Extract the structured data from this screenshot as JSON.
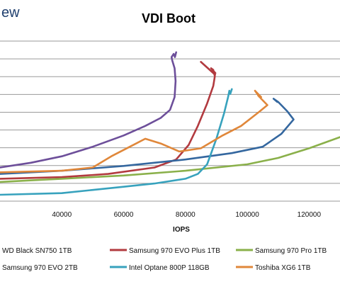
{
  "brand": {
    "logo_text": "ew"
  },
  "chart_data": {
    "type": "line",
    "title": "VDI Boot",
    "xlabel": "IOPS",
    "ylabel": "",
    "xlim": [
      20000,
      130000
    ],
    "ylim": [
      0,
      10
    ],
    "x_ticks": [
      40000,
      60000,
      80000,
      100000,
      120000
    ],
    "y_gridlines": 9,
    "grid": true,
    "legend_position": "bottom",
    "series": [
      {
        "name": "WD Black SN750 1TB",
        "color": "#6d4f9a",
        "points": [
          [
            20000,
            2.1
          ],
          [
            30000,
            2.4
          ],
          [
            40000,
            2.8
          ],
          [
            50000,
            3.4
          ],
          [
            60000,
            4.1
          ],
          [
            67000,
            4.7
          ],
          [
            72000,
            5.2
          ],
          [
            75000,
            5.7
          ],
          [
            76500,
            6.5
          ],
          [
            76800,
            7.5
          ],
          [
            76500,
            8.3
          ],
          [
            75700,
            8.8
          ],
          [
            75500,
            9.0
          ],
          [
            76200,
            9.2
          ],
          [
            76600,
            9.0
          ],
          [
            77000,
            9.3
          ]
        ]
      },
      {
        "name": "Samsung 970 EVO Plus 1TB",
        "color": "#b23a3f",
        "points": [
          [
            20000,
            1.4
          ],
          [
            40000,
            1.5
          ],
          [
            55000,
            1.7
          ],
          [
            70000,
            2.1
          ],
          [
            77000,
            2.6
          ],
          [
            81000,
            3.5
          ],
          [
            84000,
            4.7
          ],
          [
            87000,
            6.1
          ],
          [
            89000,
            7.2
          ],
          [
            89500,
            7.8
          ],
          [
            89000,
            8.2
          ],
          [
            88300,
            8.3
          ],
          [
            89700,
            8.0
          ],
          [
            89400,
            8.0
          ],
          [
            89600,
            7.9
          ],
          [
            85000,
            8.7
          ]
        ]
      },
      {
        "name": "Samsung 970 Pro 1TB",
        "color": "#8ab04a",
        "points": [
          [
            20000,
            1.2
          ],
          [
            40000,
            1.4
          ],
          [
            60000,
            1.6
          ],
          [
            80000,
            1.9
          ],
          [
            100000,
            2.3
          ],
          [
            110000,
            2.7
          ],
          [
            120000,
            3.3
          ],
          [
            130000,
            4.0
          ]
        ]
      },
      {
        "name": "Samsung 970 EVO 2TB",
        "color": "#34679f",
        "points": [
          [
            20000,
            1.7
          ],
          [
            40000,
            1.9
          ],
          [
            60000,
            2.2
          ],
          [
            80000,
            2.6
          ],
          [
            95000,
            3.0
          ],
          [
            105000,
            3.4
          ],
          [
            111000,
            4.2
          ],
          [
            115000,
            5.1
          ],
          [
            113000,
            5.6
          ],
          [
            111000,
            6.0
          ],
          [
            110000,
            6.2
          ],
          [
            108500,
            6.4
          ],
          [
            109700,
            6.2
          ],
          [
            110000,
            6.2
          ]
        ]
      },
      {
        "name": "Intel Optane 800P 118GB",
        "color": "#37a2bd",
        "points": [
          [
            20000,
            0.4
          ],
          [
            40000,
            0.5
          ],
          [
            50000,
            0.7
          ],
          [
            60000,
            0.9
          ],
          [
            70000,
            1.1
          ],
          [
            80000,
            1.4
          ],
          [
            84000,
            1.7
          ],
          [
            87000,
            2.3
          ],
          [
            90000,
            3.9
          ],
          [
            92500,
            5.5
          ],
          [
            93800,
            6.5
          ],
          [
            94200,
            6.9
          ],
          [
            94500,
            6.7
          ],
          [
            95000,
            7.0
          ]
        ]
      },
      {
        "name": "Toshiba XG6 1TB",
        "color": "#e0873a",
        "points": [
          [
            20000,
            1.8
          ],
          [
            40000,
            1.9
          ],
          [
            50000,
            2.1
          ],
          [
            56000,
            2.8
          ],
          [
            62000,
            3.4
          ],
          [
            67000,
            3.9
          ],
          [
            72000,
            3.6
          ],
          [
            78000,
            3.1
          ],
          [
            85000,
            3.3
          ],
          [
            92000,
            4.1
          ],
          [
            98000,
            4.7
          ],
          [
            104000,
            5.6
          ],
          [
            106500,
            6.0
          ],
          [
            104500,
            6.4
          ],
          [
            102500,
            6.9
          ],
          [
            104000,
            6.5
          ],
          [
            103500,
            6.6
          ],
          [
            104500,
            6.5
          ],
          [
            102500,
            6.9
          ]
        ]
      }
    ]
  }
}
